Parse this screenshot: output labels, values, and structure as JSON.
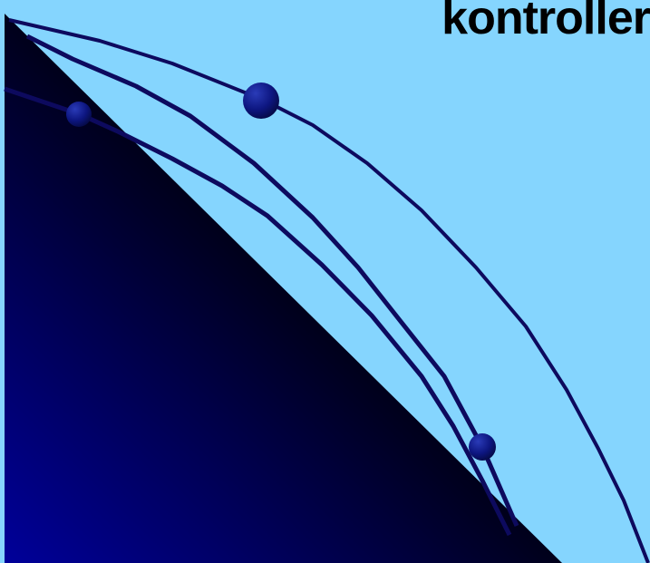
{
  "slide": {
    "title": "kontroller"
  },
  "colors": {
    "background": "#85d5fe",
    "gradient_dark": "#000010",
    "gradient_light": "#00009a",
    "curve_stroke": "#0d0a5e",
    "sphere_highlight": "#2a3bb8",
    "sphere_shadow": "#050a45"
  }
}
